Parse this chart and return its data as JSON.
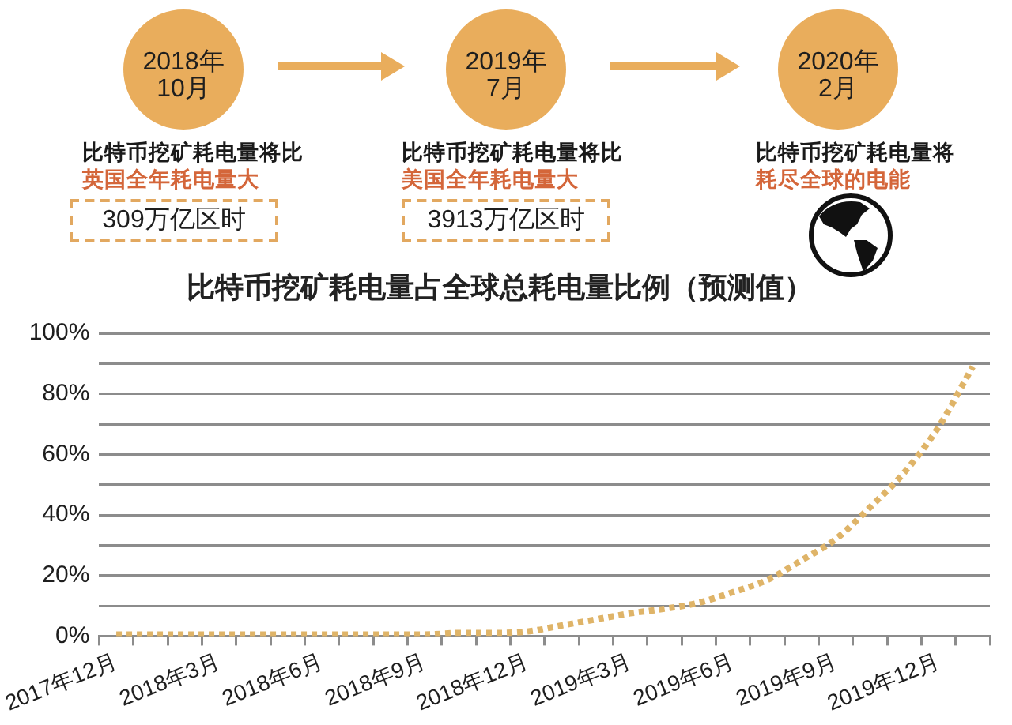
{
  "chart_data": {
    "type": "line",
    "title": "比特币挖矿耗电量占全球总耗电量比例（预测值）",
    "categories": [
      "2017年12月",
      null,
      null,
      "2018年3月",
      null,
      null,
      "2018年6月",
      null,
      null,
      "2018年9月",
      null,
      null,
      "2018年12月",
      null,
      null,
      "2019年3月",
      null,
      null,
      "2019年6月",
      null,
      null,
      "2019年9月",
      null,
      null,
      "2019年12月",
      null
    ],
    "values": [
      0.5,
      0.5,
      0.5,
      0.5,
      0.5,
      0.5,
      0.5,
      0.5,
      0.5,
      0.5,
      1,
      1,
      1.5,
      3.5,
      5.5,
      7.5,
      9,
      11,
      14.5,
      18.5,
      25,
      32,
      42.5,
      54,
      69,
      89
    ],
    "color": "#dfb468",
    "line_style": "dotted",
    "ylim": [
      0,
      100
    ],
    "yticks": [
      {
        "value": 0,
        "label": "0%"
      },
      {
        "value": 10,
        "label": null
      },
      {
        "value": 20,
        "label": "20%"
      },
      {
        "value": 30,
        "label": null
      },
      {
        "value": 40,
        "label": "40%"
      },
      {
        "value": 50,
        "label": null
      },
      {
        "value": 60,
        "label": "60%"
      },
      {
        "value": 70,
        "label": null
      },
      {
        "value": 80,
        "label": "80%"
      },
      {
        "value": 90,
        "label": null
      },
      {
        "value": 100,
        "label": "100%"
      }
    ],
    "grid": "y",
    "annotations": [
      "2018年10月",
      "比特币挖矿耗电量将比",
      "英国全年耗电量大",
      "309万亿区时",
      "2019年7月",
      "比特币挖矿耗电量将比",
      "美国全年耗电量大",
      "3913万亿区时",
      "2020年2月",
      "比特币挖矿耗电量将",
      "耗尽全球的电能"
    ]
  }
}
